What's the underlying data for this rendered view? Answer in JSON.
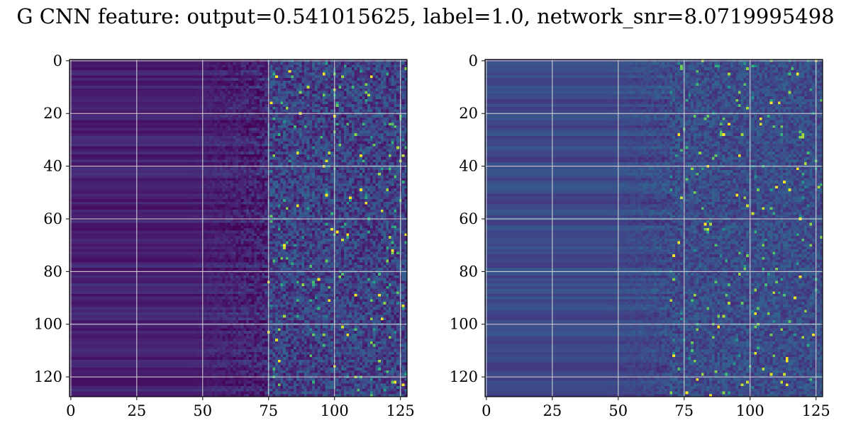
{
  "title": "G CNN feature: output=0.541015625, label=1.0, network_snr=8.0719995498",
  "chart_data": [
    {
      "type": "heatmap",
      "name": "left-panel",
      "x_ticks": [
        0,
        25,
        50,
        75,
        100,
        125
      ],
      "y_ticks": [
        0,
        20,
        40,
        60,
        80,
        100,
        120
      ],
      "xlim": [
        -0.5,
        127.5
      ],
      "ylim": [
        127.5,
        -0.5
      ],
      "grid": true,
      "colormap": "viridis",
      "shape": [
        128,
        128
      ],
      "description_values": {
        "low_region_columns": [
          0,
          75
        ],
        "high_variance_columns": [
          75,
          127
        ],
        "base_level": 0.12,
        "noise_level": 0.35
      }
    },
    {
      "type": "heatmap",
      "name": "right-panel",
      "x_ticks": [
        0,
        25,
        50,
        75,
        100,
        125
      ],
      "y_ticks": [
        0,
        20,
        40,
        60,
        80,
        100,
        120
      ],
      "xlim": [
        -0.5,
        127.5
      ],
      "ylim": [
        127.5,
        -0.5
      ],
      "grid": true,
      "colormap": "viridis",
      "shape": [
        128,
        128
      ],
      "description_values": {
        "low_region_columns": [
          0,
          70
        ],
        "high_variance_columns": [
          70,
          127
        ],
        "base_level": 0.28,
        "noise_level": 0.25
      }
    }
  ],
  "colors": {
    "grid": "#d9d9d9",
    "axis": "#000000"
  }
}
